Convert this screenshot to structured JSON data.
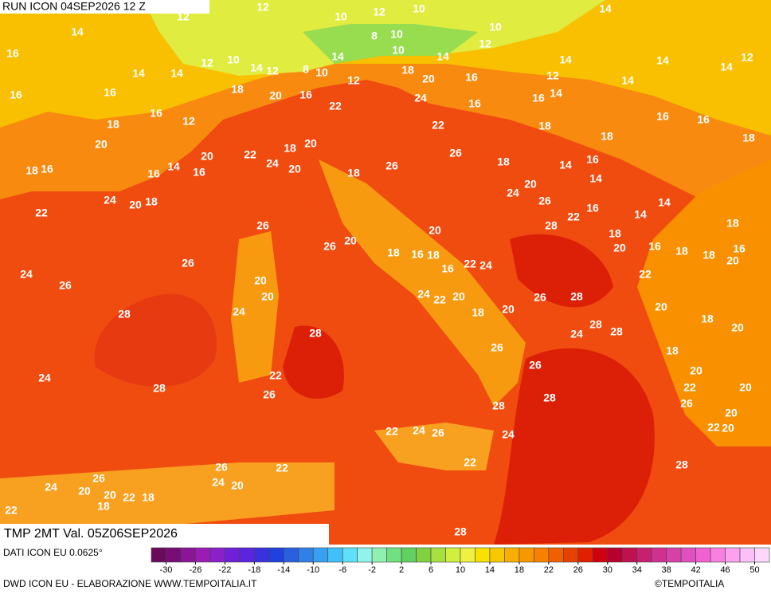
{
  "header": {
    "run": "RUN ICON 04SEP2026 12 Z",
    "field": "TMP 2MT Val. 05Z06SEP2026"
  },
  "footer": {
    "source": "DATI ICON EU 0.0625°",
    "credit": "DWD ICON EU - ELABORAZIONE WWW.TEMPOITALIA.IT",
    "copyright": "©TEMPOITALIA"
  },
  "colorbar": {
    "range": [
      -32,
      52
    ],
    "ticks": [
      -30,
      -26,
      -22,
      -18,
      -14,
      -10,
      -6,
      -2,
      2,
      6,
      10,
      14,
      18,
      22,
      26,
      30,
      34,
      38,
      42,
      46,
      50
    ],
    "colors": [
      "#6a0a5a",
      "#7a0c78",
      "#8c1496",
      "#9a1cb4",
      "#8a20c8",
      "#7020d8",
      "#5a24e0",
      "#3a30e0",
      "#2040e0",
      "#2860e0",
      "#3080e8",
      "#38a0f0",
      "#40c0f8",
      "#60e0f8",
      "#90f4ec",
      "#90f0b0",
      "#70e080",
      "#60d060",
      "#80d040",
      "#a8e040",
      "#d0f040",
      "#f0f040",
      "#f8e000",
      "#f8c800",
      "#f8b000",
      "#f89800",
      "#f88000",
      "#f06000",
      "#e84000",
      "#e02000",
      "#d00010",
      "#b80030",
      "#c01050",
      "#c82070",
      "#d03090",
      "#d840a8",
      "#e050c0",
      "#f060d0",
      "#f880e0",
      "#fca0f0",
      "#fcc0f8",
      "#fdd8fb"
    ]
  },
  "map_labels": [
    12,
    12,
    10,
    12,
    10,
    14,
    14,
    8,
    10,
    10,
    12,
    16,
    12,
    10,
    14,
    14,
    14,
    12,
    8,
    10,
    14,
    10,
    14,
    14,
    14,
    14,
    12,
    16,
    16,
    18,
    20,
    16,
    12,
    18,
    20,
    16,
    12,
    14,
    14,
    16,
    12,
    18,
    22,
    24,
    16,
    16,
    22,
    18,
    16,
    16,
    20,
    18,
    20,
    26,
    18,
    18,
    20,
    22,
    24,
    20,
    18,
    16,
    16,
    14,
    16,
    18,
    26,
    18,
    14,
    16,
    14,
    24,
    20,
    18,
    24,
    20,
    26,
    22,
    16,
    22,
    14,
    14,
    28,
    18,
    26,
    18,
    26,
    26,
    20,
    20,
    20,
    16,
    18,
    18,
    20,
    16,
    18,
    16,
    18,
    16,
    22,
    24,
    24,
    26,
    20,
    22,
    20,
    24,
    22,
    20,
    26,
    28,
    28,
    24,
    18,
    20,
    20,
    18,
    20,
    28,
    24,
    28,
    28,
    26,
    18,
    20,
    26,
    24,
    22,
    28,
    26,
    22,
    20,
    28,
    26,
    28,
    20,
    22,
    20,
    22,
    24,
    26,
    24,
    22,
    22,
    28,
    26,
    26,
    24,
    20,
    24,
    20,
    20,
    22,
    18,
    18,
    22,
    28
  ]
}
